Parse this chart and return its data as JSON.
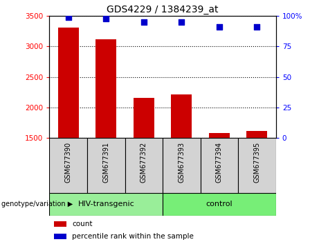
{
  "title": "GDS4229 / 1384239_at",
  "samples": [
    "GSM677390",
    "GSM677391",
    "GSM677392",
    "GSM677393",
    "GSM677394",
    "GSM677395"
  ],
  "counts": [
    3310,
    3120,
    2160,
    2210,
    1580,
    1610
  ],
  "percentile_ranks": [
    99,
    98,
    95,
    95,
    91,
    91
  ],
  "ylim_left": [
    1500,
    3500
  ],
  "ylim_right": [
    0,
    100
  ],
  "yticks_left": [
    1500,
    2000,
    2500,
    3000,
    3500
  ],
  "yticks_right": [
    0,
    25,
    50,
    75,
    100
  ],
  "bar_color": "#cc0000",
  "dot_color": "#0000cc",
  "groups": [
    {
      "label": "HIV-transgenic",
      "start": 0,
      "end": 2,
      "color": "#99ee99"
    },
    {
      "label": "control",
      "start": 3,
      "end": 5,
      "color": "#77ee77"
    }
  ],
  "group_label": "genotype/variation",
  "legend_count_label": "count",
  "legend_percentile_label": "percentile rank within the sample",
  "sample_box_color": "#d3d3d3",
  "n_samples": 6
}
